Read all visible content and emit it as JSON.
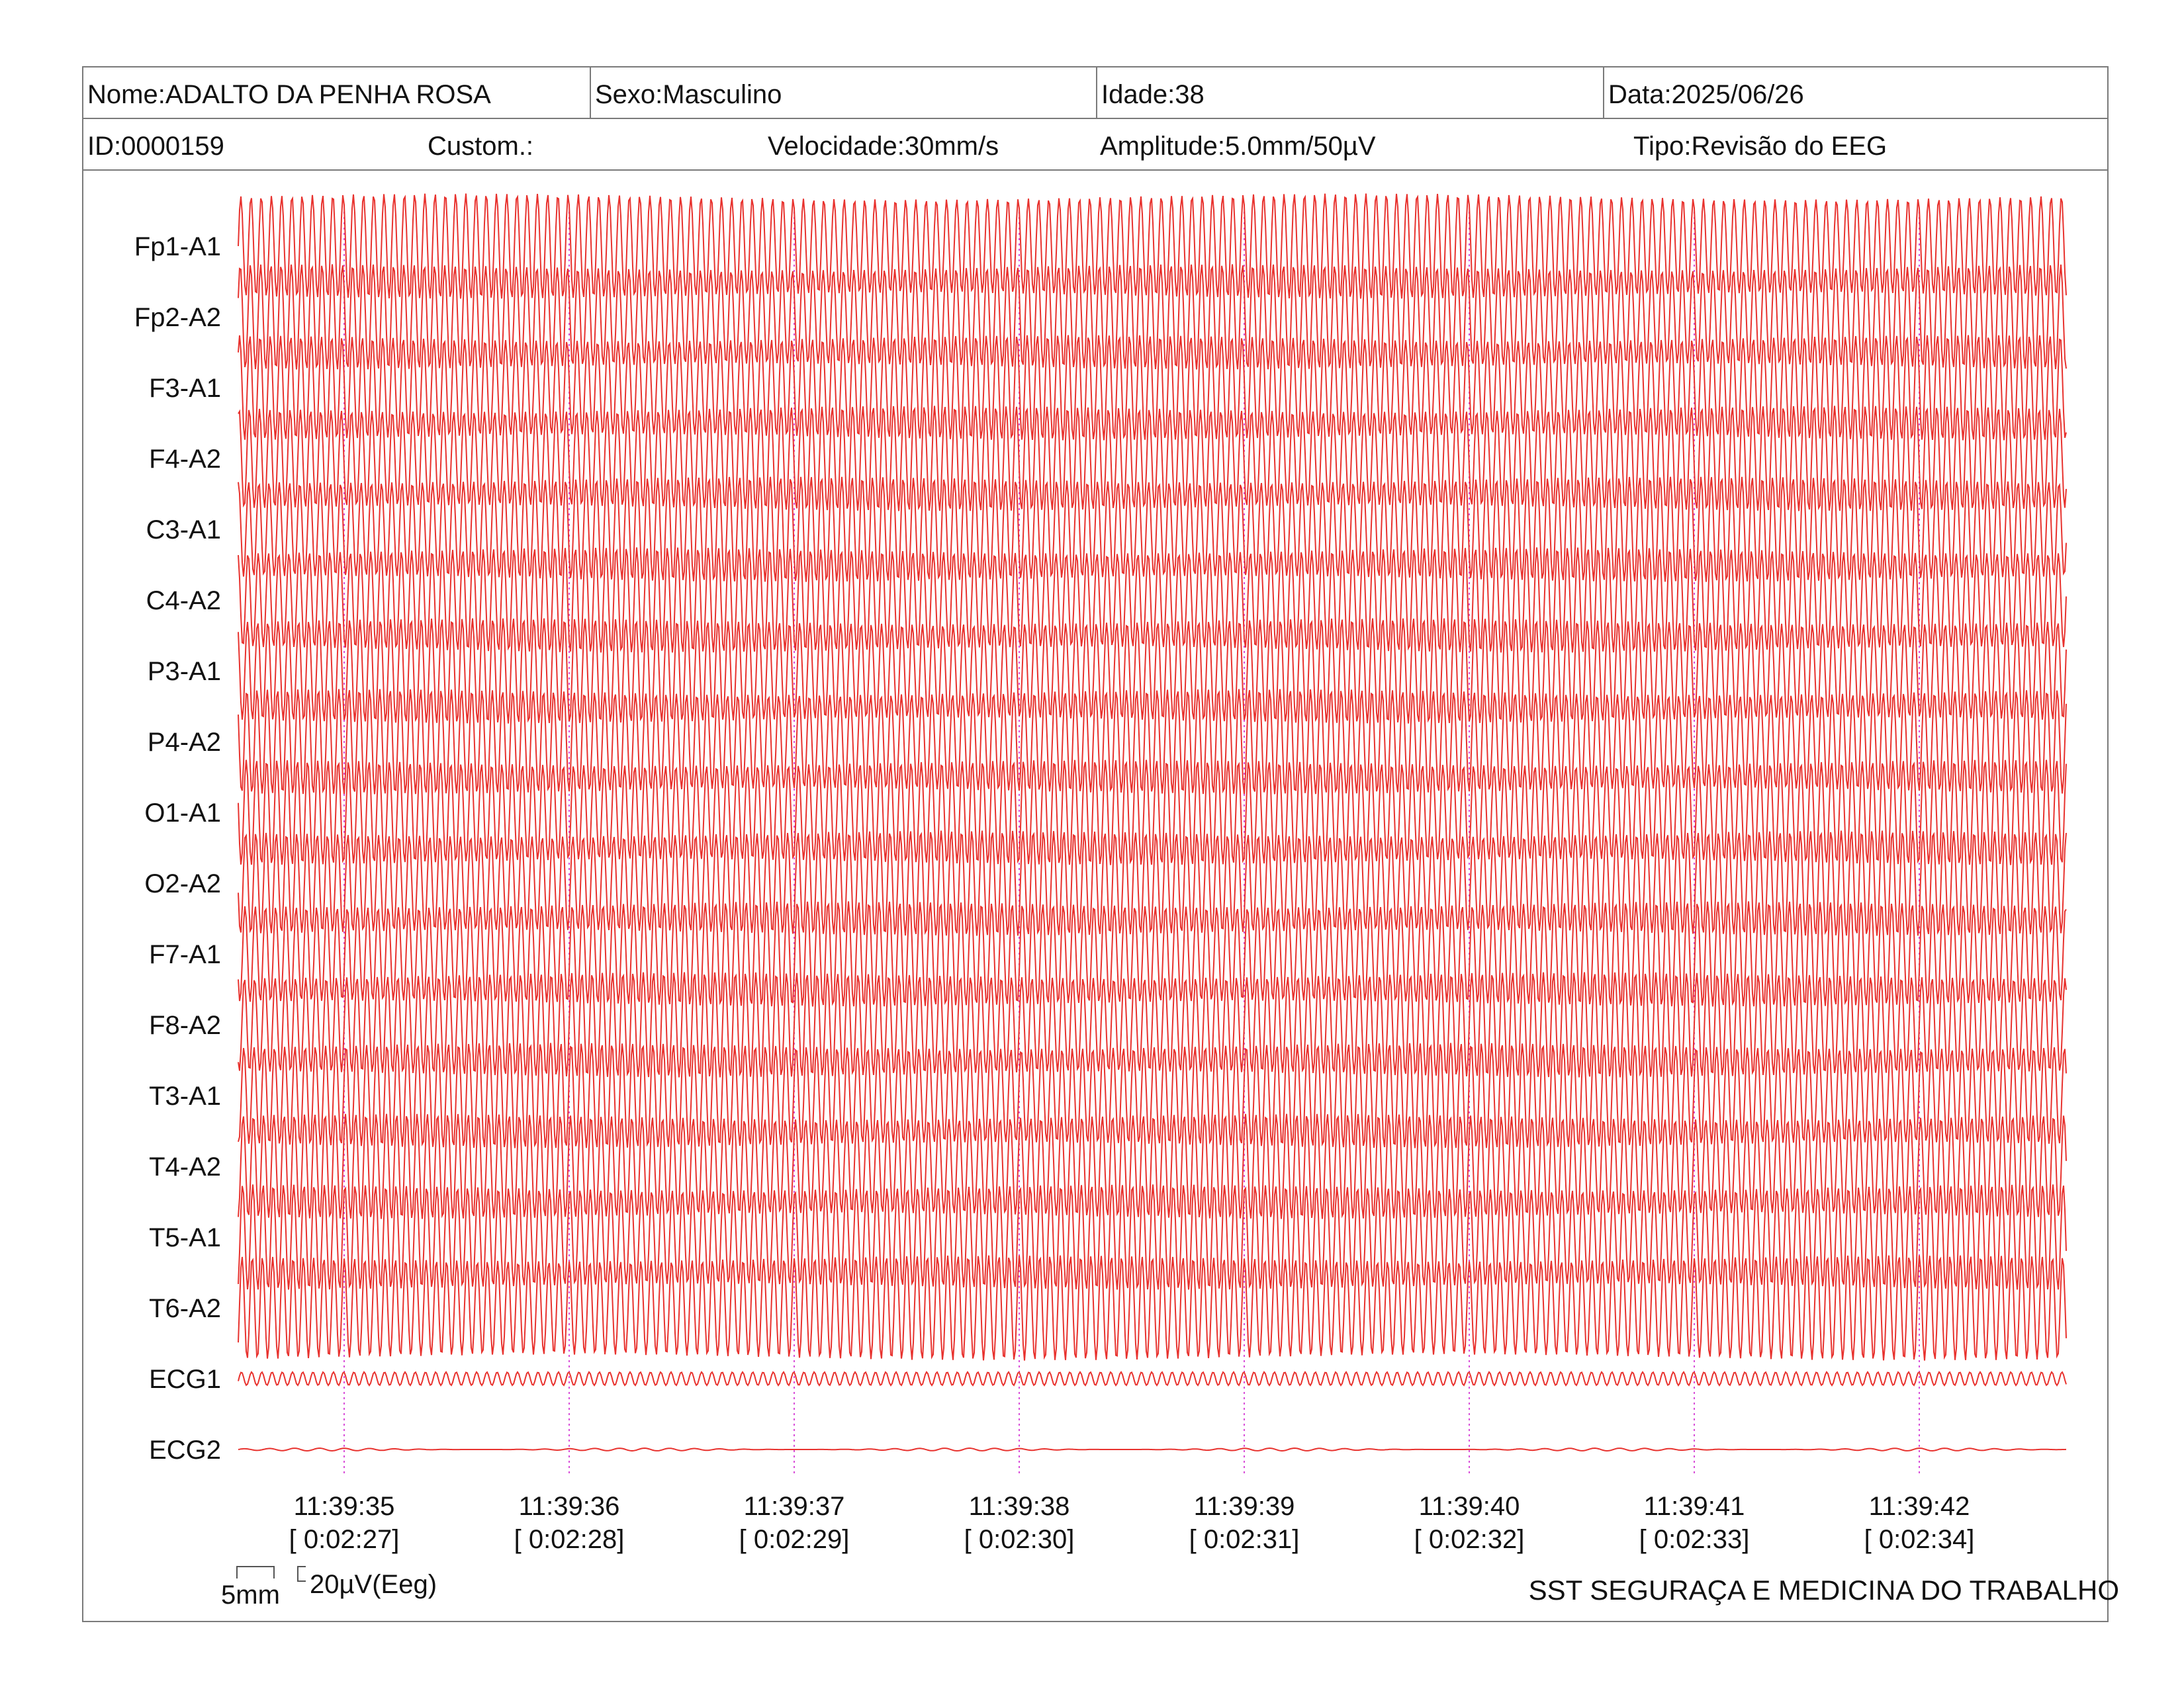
{
  "header": {
    "nome": "Nome:ADALTO DA PENHA ROSA",
    "sexo": "Sexo:Masculino",
    "idade": "Idade:38",
    "data": "Data:2025/06/26",
    "id": "ID:0000159",
    "custom": "Custom.:",
    "velocidade": "Velocidade:30mm/s",
    "amplitude": "Amplitude:5.0mm/50µV",
    "tipo": "Tipo:Revisão do EEG"
  },
  "calibration": {
    "time_label": "5mm",
    "amp_label": "20µV(Eeg)"
  },
  "footer": "SST SEGURAÇA E MEDICINA DO TRABALHO",
  "colors": {
    "trace": "#e8322e",
    "marker": "#d94fd9",
    "border": "#7a7a7a"
  },
  "chart_data": {
    "type": "line",
    "channels": [
      "Fp1-A1",
      "Fp2-A2",
      "F3-A1",
      "F4-A2",
      "C3-A1",
      "C4-A2",
      "P3-A1",
      "P4-A2",
      "O1-A1",
      "O2-A2",
      "F7-A1",
      "F8-A2",
      "T3-A1",
      "T4-A2",
      "T5-A1",
      "T6-A2",
      "ECG1",
      "ECG2"
    ],
    "time_ticks": [
      {
        "clock": "11:39:35",
        "elapsed": "[ 0:02:27]"
      },
      {
        "clock": "11:39:36",
        "elapsed": "[ 0:02:28]"
      },
      {
        "clock": "11:39:37",
        "elapsed": "[ 0:02:29]"
      },
      {
        "clock": "11:39:38",
        "elapsed": "[ 0:02:30]"
      },
      {
        "clock": "11:39:39",
        "elapsed": "[ 0:02:31]"
      },
      {
        "clock": "11:39:40",
        "elapsed": "[ 0:02:32]"
      },
      {
        "clock": "11:39:41",
        "elapsed": "[ 0:02:33]"
      },
      {
        "clock": "11:39:42",
        "elapsed": "[ 0:02:34]"
      }
    ],
    "eeg_frequency_hz": 22,
    "eeg_amplitude_uv": 75,
    "ecg1_amplitude_uv": 10,
    "ecg2_amplitude_uv": 2,
    "grid": false
  }
}
